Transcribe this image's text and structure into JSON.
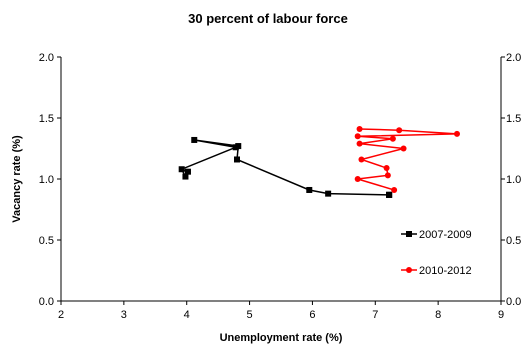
{
  "chart_data": {
    "type": "line",
    "title": "30 percent of labour force",
    "xlabel": "Unemployment rate (%)",
    "ylabel": "Vacancy rate (%)",
    "xlim": [
      2,
      9
    ],
    "ylim": [
      0,
      2
    ],
    "x_ticks": [
      "2",
      "3",
      "4",
      "5",
      "6",
      "7",
      "8",
      "9"
    ],
    "y_ticks": [
      "0.0",
      "0.5",
      "1.0",
      "1.5",
      "2.0"
    ],
    "y2_ticks": [
      "0.0",
      "0.5",
      "1.0",
      "1.5",
      "2.0"
    ],
    "grid": false,
    "legend_position": "right",
    "series": [
      {
        "name": "2007-2009",
        "color": "#000000",
        "marker": "square",
        "points": [
          [
            4.12,
            1.32
          ],
          [
            4.78,
            1.26
          ],
          [
            4.82,
            1.27
          ],
          [
            4.8,
            1.16
          ],
          [
            5.95,
            0.91
          ],
          [
            6.25,
            0.88
          ],
          [
            7.22,
            0.87
          ],
          [
            7.22,
            0.87
          ],
          [
            7.22,
            0.87
          ]
        ],
        "points_start": [
          [
            3.92,
            1.08
          ],
          [
            4.02,
            1.06
          ],
          [
            3.98,
            1.02
          ]
        ]
      },
      {
        "name": "2010-2012",
        "color": "#ff0000",
        "marker": "circle",
        "points": [
          [
            6.75,
            1.41
          ],
          [
            7.38,
            1.4
          ],
          [
            8.3,
            1.37
          ],
          [
            6.72,
            1.35
          ],
          [
            7.28,
            1.33
          ],
          [
            6.75,
            1.29
          ],
          [
            7.45,
            1.25
          ],
          [
            6.78,
            1.16
          ],
          [
            7.18,
            1.09
          ],
          [
            7.2,
            1.03
          ],
          [
            6.72,
            1.0
          ],
          [
            7.3,
            0.91
          ]
        ]
      }
    ]
  }
}
